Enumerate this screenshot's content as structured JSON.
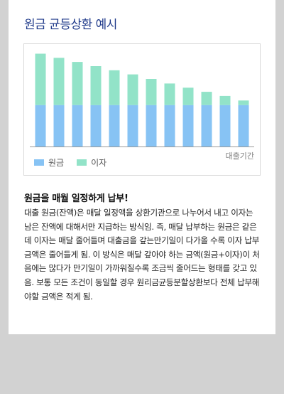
{
  "page": {
    "title": "원금 균등상환 예시",
    "heading": "원금을 매월 일정하게 납부!",
    "description": "대출 원금(잔액)은 매달 일정액을 상환기관으로 나누어서 내고 이자는 남은 잔액에 대해서만 지급하는 방식임. 즉, 매달 납부하는 원금은 같은데 이자는 매달 줄어들며 대출금을 갚는만기일이 다가올 수록 이자 납부 금액은 줄어들게 됨. 이 방식은 매달 갚아야 하는 금액(원금+이자)이 처음에는 많다가 만기일이 가까워질수록 조금씩 줄어드는 형태를 갖고 있음. 보통 모든 조건이 동일할 경우 원리금균등분할상환보다 전체 납부해야할 금액은 적게 됨."
  },
  "chart_data": {
    "type": "bar",
    "stacked": true,
    "xlabel": "대출기간",
    "ylabel": "",
    "categories": [
      "",
      "",
      "",
      "",
      "",
      "",
      "",
      "",
      "",
      "",
      "",
      ""
    ],
    "series": [
      {
        "name": "원금",
        "color": "#87c3f4",
        "values": [
          10,
          10,
          10,
          10,
          10,
          10,
          10,
          10,
          10,
          10,
          10,
          10
        ]
      },
      {
        "name": "이자",
        "color": "#92e3c8",
        "values": [
          12.4,
          11.4,
          10.4,
          9.4,
          8.4,
          7.4,
          6.3,
          5.2,
          4.2,
          3.2,
          2.2,
          1.1
        ]
      }
    ],
    "ylim": [
      0,
      23
    ],
    "grid": false,
    "legend": "bottom-left"
  }
}
